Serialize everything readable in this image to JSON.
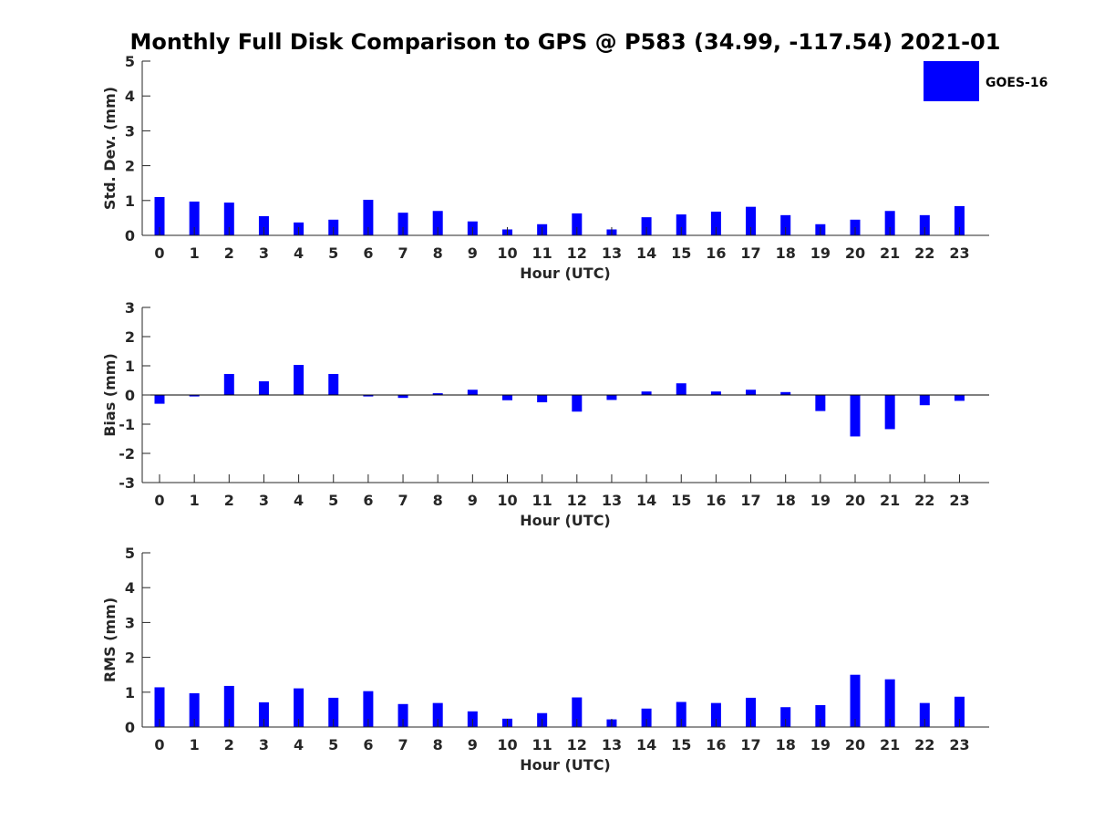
{
  "title": "Monthly Full Disk Comparison to GPS @ P583 (34.99, -117.54) 2021-01",
  "legend": {
    "label": "GOES-16",
    "color": "#0000ff",
    "placement": "top-right"
  },
  "chart_data": [
    {
      "type": "bar",
      "name": "std-dev",
      "xlabel": "Hour (UTC)",
      "ylabel": "Std. Dev. (mm)",
      "ylim": [
        0,
        5
      ],
      "yticks": [
        0,
        1,
        2,
        3,
        4,
        5
      ],
      "categories": [
        "0",
        "1",
        "2",
        "3",
        "4",
        "5",
        "6",
        "7",
        "8",
        "9",
        "10",
        "11",
        "12",
        "13",
        "14",
        "15",
        "16",
        "17",
        "18",
        "19",
        "20",
        "21",
        "22",
        "23"
      ],
      "series": [
        {
          "name": "GOES-16",
          "color": "#0000ff",
          "values": [
            1.1,
            0.97,
            0.94,
            0.55,
            0.37,
            0.45,
            1.02,
            0.65,
            0.7,
            0.4,
            0.17,
            0.32,
            0.63,
            0.17,
            0.52,
            0.6,
            0.68,
            0.82,
            0.58,
            0.32,
            0.45,
            0.7,
            0.58,
            0.84
          ]
        }
      ]
    },
    {
      "type": "bar",
      "name": "bias",
      "xlabel": "Hour (UTC)",
      "ylabel": "Bias (mm)",
      "ylim": [
        -3,
        3
      ],
      "yticks": [
        -3,
        -2,
        -1,
        0,
        1,
        2,
        3
      ],
      "zero_line": true,
      "categories": [
        "0",
        "1",
        "2",
        "3",
        "4",
        "5",
        "6",
        "7",
        "8",
        "9",
        "10",
        "11",
        "12",
        "13",
        "14",
        "15",
        "16",
        "17",
        "18",
        "19",
        "20",
        "21",
        "22",
        "23"
      ],
      "series": [
        {
          "name": "GOES-16",
          "color": "#0000ff",
          "values": [
            -0.3,
            -0.05,
            0.72,
            0.47,
            1.03,
            0.72,
            -0.05,
            -0.1,
            0.06,
            0.18,
            -0.18,
            -0.25,
            -0.57,
            -0.17,
            0.12,
            0.4,
            0.12,
            0.18,
            0.1,
            -0.55,
            -1.42,
            -1.17,
            -0.35,
            -0.2
          ]
        }
      ]
    },
    {
      "type": "bar",
      "name": "rms",
      "xlabel": "Hour (UTC)",
      "ylabel": "RMS (mm)",
      "ylim": [
        0,
        5
      ],
      "yticks": [
        0,
        1,
        2,
        3,
        4,
        5
      ],
      "categories": [
        "0",
        "1",
        "2",
        "3",
        "4",
        "5",
        "6",
        "7",
        "8",
        "9",
        "10",
        "11",
        "12",
        "13",
        "14",
        "15",
        "16",
        "17",
        "18",
        "19",
        "20",
        "21",
        "22",
        "23"
      ],
      "series": [
        {
          "name": "GOES-16",
          "color": "#0000ff",
          "values": [
            1.14,
            0.97,
            1.18,
            0.71,
            1.11,
            0.84,
            1.03,
            0.66,
            0.69,
            0.45,
            0.24,
            0.4,
            0.85,
            0.22,
            0.53,
            0.72,
            0.69,
            0.84,
            0.57,
            0.63,
            1.5,
            1.37,
            0.69,
            0.87
          ]
        }
      ]
    }
  ]
}
